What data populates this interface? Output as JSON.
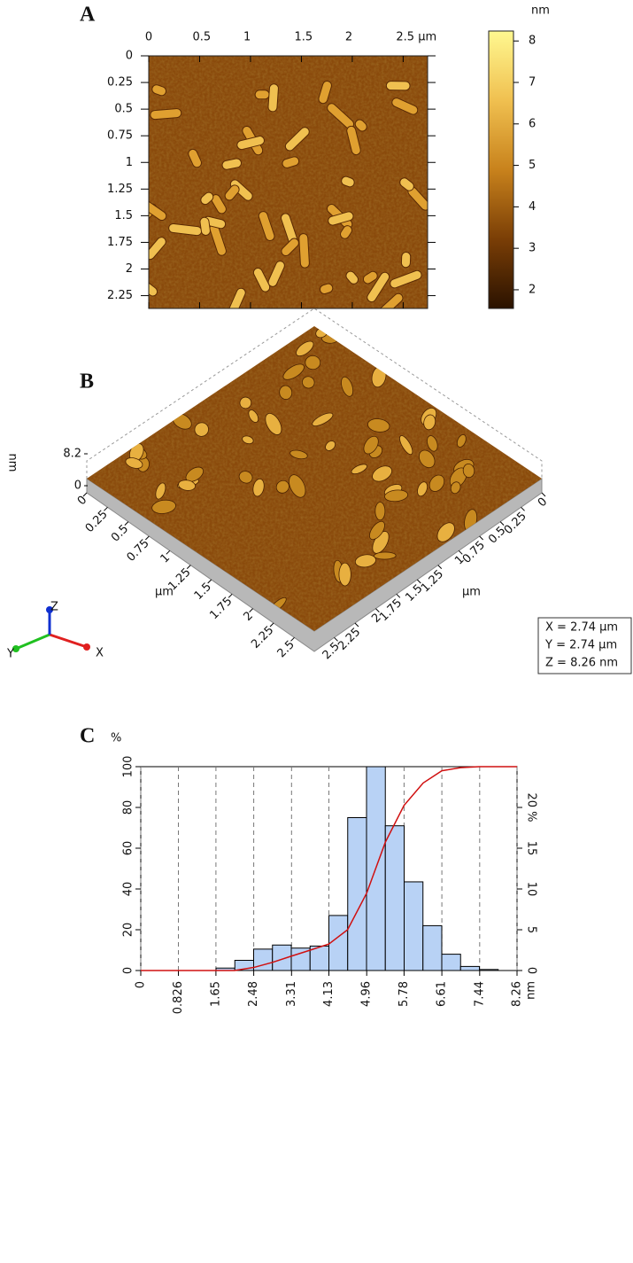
{
  "chart_data": [
    {
      "type": "image",
      "label": "A",
      "xlim": [
        0,
        2.74
      ],
      "xticks": [
        0,
        0.5,
        1,
        1.5,
        2,
        {
          "value": 2.5,
          "label": "2.5 µm"
        }
      ],
      "ylim": [
        0,
        2.37
      ],
      "yticks": [
        0,
        0.25,
        0.5,
        0.75,
        1,
        1.25,
        1.5,
        1.75,
        2,
        2.25
      ],
      "colorbar": {
        "label": "nm",
        "clim": [
          1.55,
          8.24
        ],
        "ticks": [
          2,
          3,
          4,
          5,
          6,
          7,
          8
        ],
        "colors": [
          "#2a1200",
          "#7a3e06",
          "#c8821c",
          "#f0c050",
          "#fff890"
        ]
      }
    },
    {
      "type": "surface3d",
      "label": "B",
      "xlabel": "µm",
      "ylabel": "µm",
      "zlabel": "nm",
      "xlim": [
        0,
        2.74
      ],
      "xticks": [
        0,
        0.25,
        0.5,
        0.75,
        1,
        1.25,
        1.5,
        1.75,
        2,
        2.25,
        2.5
      ],
      "ylim": [
        0,
        2.74
      ],
      "yticks": [
        0,
        0.25,
        0.5,
        0.75,
        1,
        1.25,
        1.5,
        1.75,
        2,
        2.25,
        2.5
      ],
      "zlim": [
        0,
        8.2
      ],
      "zticks": [
        8.2,
        0
      ],
      "axes": [
        "X",
        "Y",
        "Z"
      ],
      "readout": [
        "X = 2.74 µm",
        "Y = 2.74 µm",
        "Z = 8.26 nm"
      ]
    },
    {
      "type": "histogram",
      "label": "C",
      "ylabel": "%",
      "xlabel": "nm",
      "xlim": [
        0,
        8.26
      ],
      "xticks": [
        0,
        0.826,
        1.65,
        2.48,
        3.31,
        4.13,
        4.96,
        5.78,
        6.61,
        7.44,
        8.26
      ],
      "ylim": [
        0,
        100
      ],
      "yticks": [
        0,
        20,
        40,
        60,
        80,
        100
      ],
      "y2lim": [
        0,
        25
      ],
      "y2ticks": [
        0,
        5,
        10,
        15,
        {
          "value": 20,
          "label": "20 %"
        }
      ],
      "grid": true,
      "color": "#b8d2f5",
      "bins": [
        1.652,
        2.065,
        2.478,
        2.891,
        3.304,
        3.717,
        4.13,
        4.543,
        4.956,
        5.369,
        5.782,
        6.195,
        6.608,
        7.021,
        7.434,
        7.847
      ],
      "counts": [
        1.2,
        5,
        10.5,
        12.5,
        11,
        12,
        27,
        75,
        100,
        71,
        43.5,
        22,
        8,
        2,
        0.5
      ],
      "cumulative": {
        "color": "#d01010",
        "x": [
          0,
          2.06,
          2.48,
          2.89,
          3.3,
          3.72,
          4.13,
          4.54,
          4.96,
          5.37,
          5.78,
          6.2,
          6.61,
          7.02,
          7.43,
          8.26
        ],
        "y": [
          0,
          0,
          1.5,
          4,
          7,
          10,
          13,
          20,
          38,
          63,
          81,
          92,
          98,
          99.5,
          100,
          100
        ]
      }
    }
  ]
}
